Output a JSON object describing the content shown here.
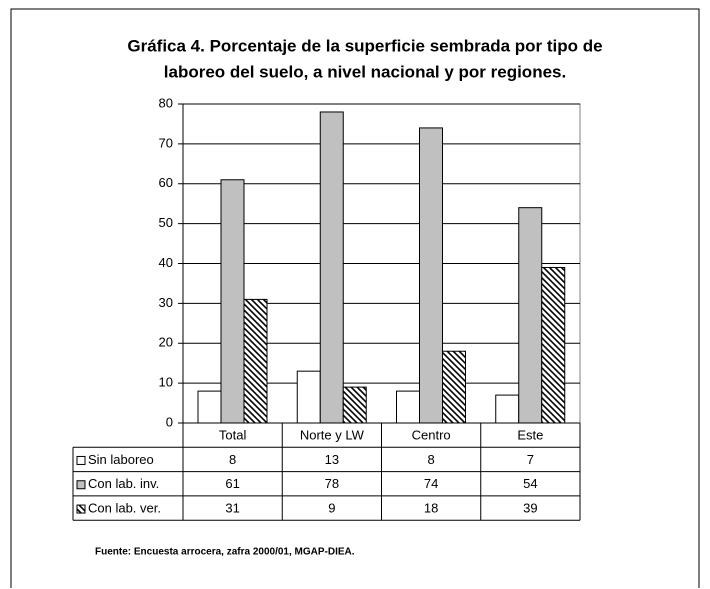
{
  "chart_data": {
    "type": "bar",
    "title_lines": [
      "Gráfica 4. Porcentaje de la superficie sembrada por tipo de",
      "laboreo del suelo, a nivel nacional y por regiones."
    ],
    "categories": [
      "Total",
      "Norte y LW",
      "Centro",
      "Este"
    ],
    "series": [
      {
        "name": "Sin laboreo",
        "color": "#ffffff",
        "values": [
          8,
          13,
          8,
          7
        ]
      },
      {
        "name": "Con lab. inv.",
        "color": "#c0c0c0",
        "values": [
          61,
          78,
          74,
          54
        ]
      },
      {
        "name": "Con lab. ver.",
        "color": "#000000",
        "hatch": true,
        "values": [
          31,
          9,
          18,
          39
        ]
      }
    ],
    "ylim": [
      0,
      80
    ],
    "yticks": [
      0,
      10,
      20,
      30,
      40,
      50,
      60,
      70,
      80
    ],
    "grid": true,
    "data_table": true,
    "source": "Fuente: Encuesta arrocera, zafra 2000/01, MGAP-DIEA."
  }
}
